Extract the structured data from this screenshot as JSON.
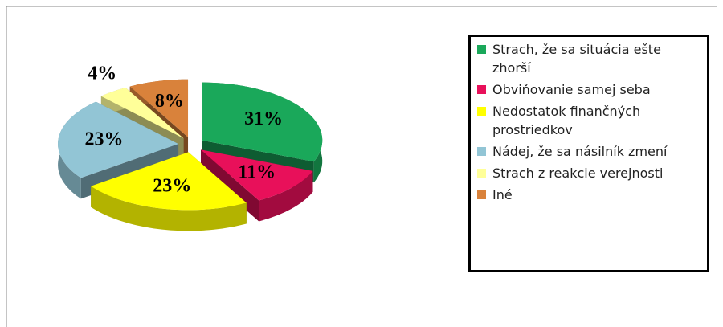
{
  "chart_data": {
    "type": "pie",
    "categories": [
      "Strach, že sa situácia ešte zhorší",
      "Obviňovanie samej seba",
      "Nedostatok finančných prostriedkov",
      "Nádej, že sa násilník zmení",
      "Strach z reakcie verejnosti",
      "Iné"
    ],
    "values": [
      31,
      11,
      23,
      23,
      4,
      8
    ],
    "value_labels": [
      "31%",
      "11%",
      "23%",
      "23%",
      "4%",
      "8%"
    ],
    "colors": [
      "#1aa85a",
      "#e8105a",
      "#ffff00",
      "#92c5d5",
      "#ffff99",
      "#d9823b"
    ],
    "legend": "right"
  }
}
